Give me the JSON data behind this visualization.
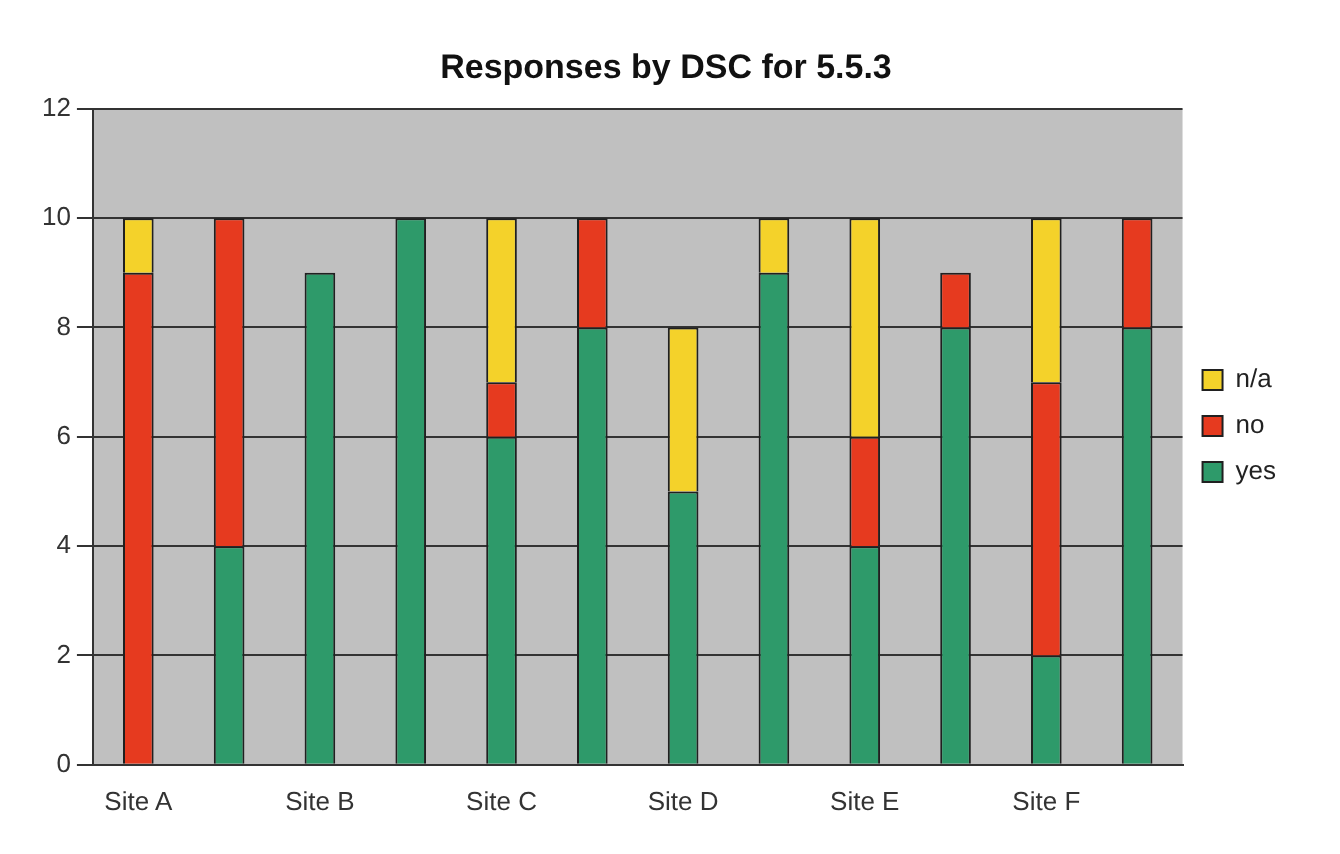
{
  "chart_data": {
    "type": "bar",
    "title": "Responses by DSC for 5.5.3",
    "stacked": true,
    "categories": [
      "Site A",
      null,
      "Site B",
      null,
      "Site C",
      null,
      "Site D",
      null,
      "Site E",
      null,
      "Site F",
      null
    ],
    "series": [
      {
        "name": "yes",
        "color": "#2e9a6a",
        "values": [
          0,
          4,
          9,
          10,
          6,
          8,
          5,
          9,
          4,
          8,
          2,
          8
        ]
      },
      {
        "name": "no",
        "color": "#e63a1f",
        "values": [
          9,
          6,
          0,
          0,
          1,
          2,
          0,
          0,
          2,
          1,
          5,
          2
        ]
      },
      {
        "name": "n/a",
        "color": "#f4d22a",
        "values": [
          1,
          0,
          0,
          0,
          3,
          0,
          3,
          1,
          4,
          0,
          3,
          0
        ]
      }
    ],
    "ylim": [
      0,
      12
    ],
    "yticks": [
      0,
      2,
      4,
      6,
      8,
      10,
      12
    ],
    "grid": "y",
    "legend": "right"
  }
}
